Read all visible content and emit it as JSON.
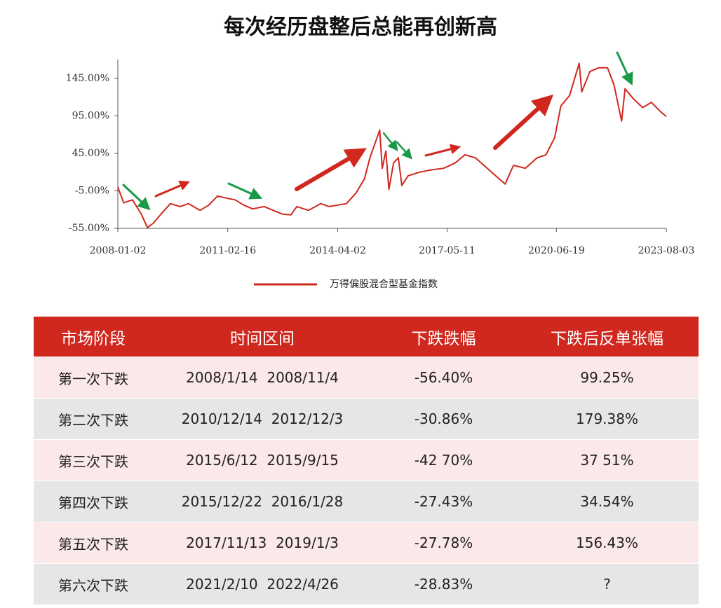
{
  "chart_data": {
    "type": "line",
    "title": "每次经历盘整后总能再创新高",
    "x": [
      "2008-01-02",
      "2008-03-03",
      "2008-06-02",
      "2008-09-01",
      "2008-11-04",
      "2009-01-05",
      "2009-04-01",
      "2009-07-01",
      "2009-10-09",
      "2010-01-04",
      "2010-05-04",
      "2010-08-02",
      "2010-11-01",
      "2011-02-14",
      "2011-05-03",
      "2011-08-01",
      "2011-11-01",
      "2012-03-01",
      "2012-06-01",
      "2012-09-03",
      "2012-12-03",
      "2013-02-01",
      "2013-06-03",
      "2013-10-08",
      "2014-01-02",
      "2014-04-01",
      "2014-07-01",
      "2014-10-08",
      "2015-01-05",
      "2015-03-02",
      "2015-06-12",
      "2015-07-08",
      "2015-08-14",
      "2015-09-15",
      "2015-11-02",
      "2015-12-22",
      "2016-01-28",
      "2016-04-01",
      "2016-08-01",
      "2016-12-01",
      "2017-04-05",
      "2017-08-01",
      "2017-11-13",
      "2018-03-01",
      "2018-07-02",
      "2019-01-03",
      "2019-04-01",
      "2019-08-01",
      "2019-12-02",
      "2020-03-02",
      "2020-06-01",
      "2020-08-03",
      "2020-11-02",
      "2021-02-10",
      "2021-03-09",
      "2021-06-01",
      "2021-09-01",
      "2021-12-01",
      "2022-02-07",
      "2022-04-26",
      "2022-06-01",
      "2022-09-01",
      "2022-12-01",
      "2023-03-01",
      "2023-06-01",
      "2023-08-03"
    ],
    "series": [
      {
        "name": "万得偏股混合型基金指数",
        "color": "#d0281f",
        "values": [
          0,
          -21,
          -17,
          -36,
          -54,
          -48,
          -35,
          -22,
          -26,
          -22,
          -31,
          -24,
          -12,
          -15,
          -17,
          -24,
          -29,
          -26,
          -31,
          -36,
          -37,
          -26,
          -31,
          -22,
          -26,
          -24,
          -22,
          -8,
          11,
          39,
          76,
          25,
          48,
          -3,
          32,
          39,
          2,
          15,
          20,
          23,
          25,
          32,
          43,
          39,
          25,
          4,
          29,
          25,
          39,
          43,
          66,
          108,
          122,
          165,
          127,
          154,
          159,
          159,
          136,
          88,
          131,
          117,
          106,
          113,
          101,
          94
        ]
      }
    ],
    "xlim": [
      "2008-01-02",
      "2023-08-03"
    ],
    "xticks": [
      "2008-01-02",
      "2011-02-16",
      "2014-04-02",
      "2017-05-11",
      "2020-06-19",
      "2023-08-03"
    ],
    "ylim": [
      -55,
      170
    ],
    "yticks": [
      {
        "value": -55,
        "label": "-55.00%"
      },
      {
        "value": -5,
        "label": "-5.00%"
      },
      {
        "value": 45,
        "label": "45.00%"
      },
      {
        "value": 95,
        "label": "95.00%"
      },
      {
        "value": 145,
        "label": "145.00%"
      }
    ]
  },
  "table": {
    "header": [
      "市场阶段",
      "时间区间",
      "下跌跌幅",
      "下跌后反单张幅"
    ],
    "rows": [
      [
        "第一次下跌",
        "2008/1/14  2008/11/4",
        "-56.40%",
        "99.25%"
      ],
      [
        "第二次下跌",
        "2010/12/14  2012/12/3",
        "-30.86%",
        "179.38%"
      ],
      [
        "第三次下跌",
        "2015/6/12  2015/9/15",
        "-42 70%",
        "37 51%"
      ],
      [
        "第四次下跌",
        "2015/12/22  2016/1/28",
        "-27.43%",
        "34.54%"
      ],
      [
        "第五次下跌",
        "2017/11/13  2019/1/3",
        "-27.78%",
        "156.43%"
      ],
      [
        "第六次下跌",
        "2021/2/10  2022/4/26",
        "-28.83%",
        "?"
      ]
    ]
  }
}
